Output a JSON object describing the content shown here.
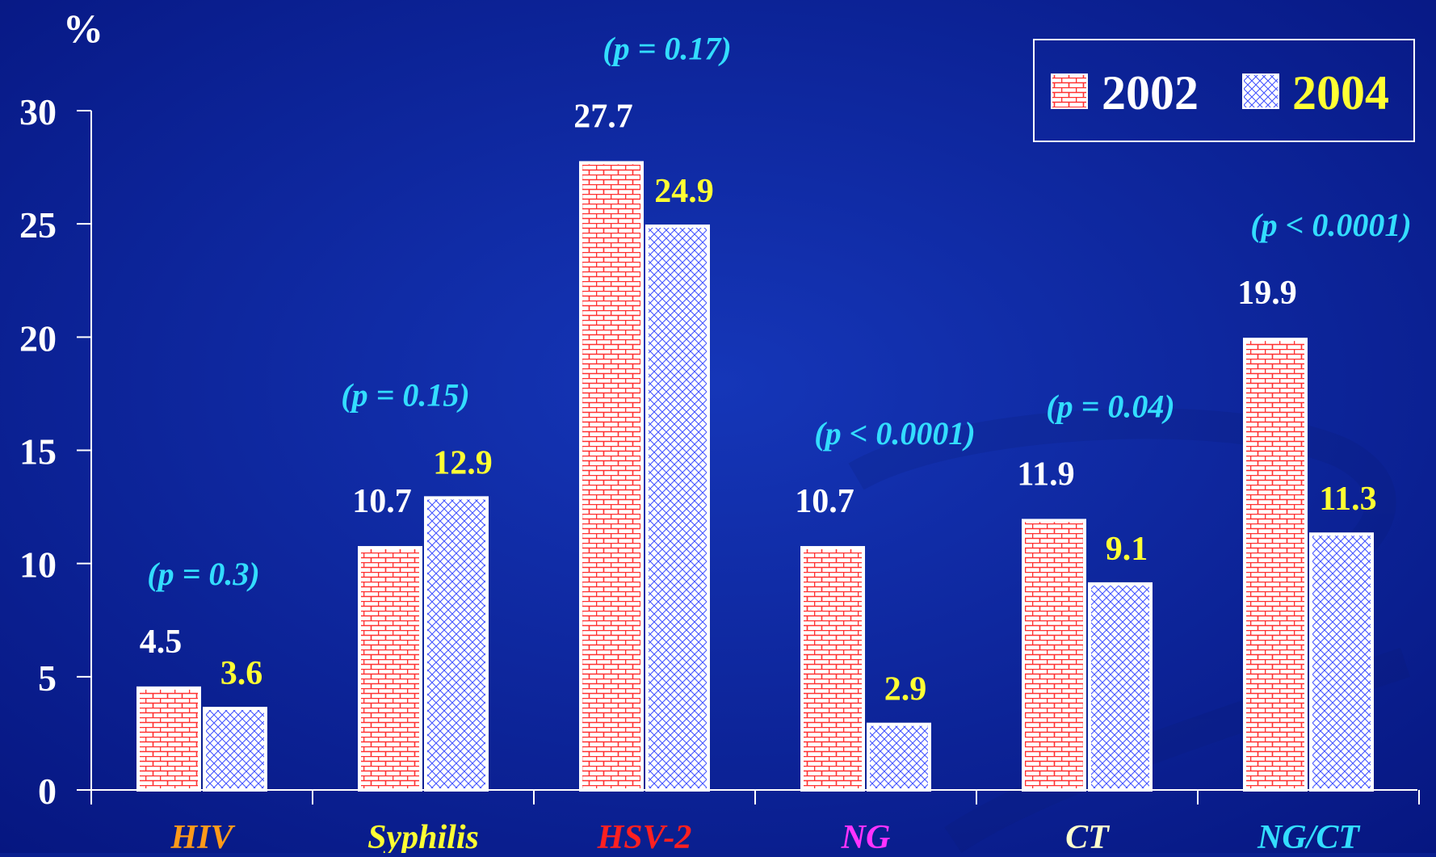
{
  "colors": {
    "background_center": "#1536b8",
    "background_edge": "#061680",
    "axis": "#ffffff",
    "series_2002_label": "#ffffff",
    "series_2004_label": "#ffff33",
    "p_value": "#33ddff",
    "brick_red": "#ff3030",
    "cross_blue": "#4455ff"
  },
  "chart_data": {
    "type": "bar",
    "title": "",
    "xlabel": "",
    "ylabel": "%",
    "ylim": [
      0,
      30
    ],
    "yticks": [
      "0",
      "5",
      "10",
      "15",
      "20",
      "25",
      "30"
    ],
    "categories": [
      "HIV",
      "Syphilis",
      "HSV-2",
      "NG",
      "CT",
      "NG/CT"
    ],
    "category_colors": [
      "#ff9a1a",
      "#ffff33",
      "#ff2020",
      "#ff33ff",
      "#ffffcc",
      "#33ddff"
    ],
    "series": [
      {
        "name": "2002",
        "values": [
          4.5,
          10.7,
          27.7,
          10.7,
          11.9,
          19.9
        ],
        "labels": [
          "4.5",
          "10.7",
          "27.7",
          "10.7",
          "11.9",
          "19.9"
        ],
        "pattern": "brick",
        "legend_color": "#ffffff"
      },
      {
        "name": "2004",
        "values": [
          3.6,
          12.9,
          24.9,
          2.9,
          9.1,
          11.3
        ],
        "labels": [
          "3.6",
          "12.9",
          "24.9",
          "2.9",
          "9.1",
          "11.3"
        ],
        "pattern": "crosshatch",
        "legend_color": "#ffff33"
      }
    ],
    "p_values": [
      "(p = 0.3)",
      "(p = 0.15)",
      "(p = 0.17)",
      "(p < 0.0001)",
      "(p = 0.04)",
      "(p < 0.0001)"
    ],
    "legend_position": "top-right",
    "grid": false
  }
}
